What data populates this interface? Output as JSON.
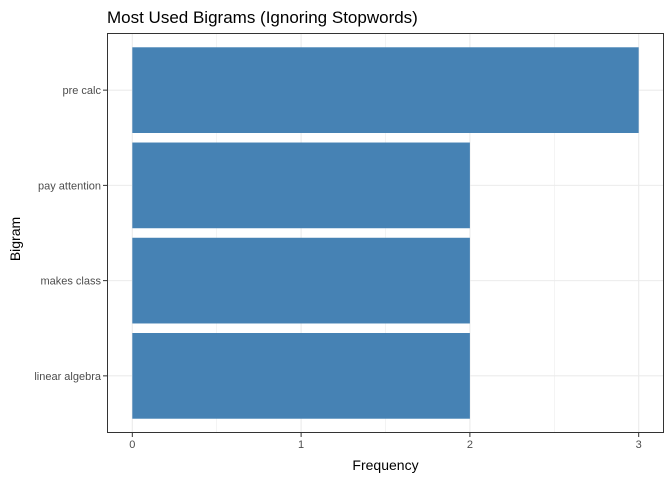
{
  "chart_data": {
    "type": "bar",
    "orientation": "horizontal",
    "title": "Most Used Bigrams (Ignoring Stopwords)",
    "xlabel": "Frequency",
    "ylabel": "Bigram",
    "categories": [
      "linear algebra",
      "makes class",
      "pay attention",
      "pre calc"
    ],
    "values": [
      2,
      2,
      2,
      3
    ],
    "xlim": [
      0,
      3
    ],
    "xticks": [
      0,
      1,
      2,
      3
    ],
    "grid": true,
    "bar_color": "#4682B4",
    "grid_color": "#EBEBEB",
    "panel_border_color": "#333333"
  }
}
